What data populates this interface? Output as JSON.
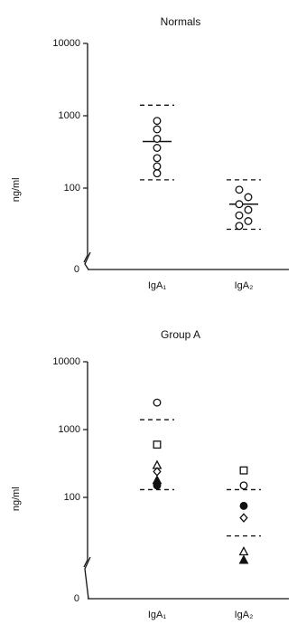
{
  "chart_data": [
    {
      "type": "dot",
      "title": "Normals",
      "y_label": "ng/ml",
      "log_scale": true,
      "categories": [
        "IgA₁",
        "IgA₂"
      ],
      "ylim": [
        10,
        10000
      ],
      "yticks": [
        10000,
        1000,
        100
      ],
      "zero_label": "0",
      "series": [
        {
          "marker": "circle",
          "filled": false,
          "color": "#111111",
          "values": [
            [
              850,
              650,
              480,
              360,
              260,
              200,
              160
            ],
            [
              95,
              75,
              60,
              50,
              42,
              35,
              30
            ]
          ]
        }
      ],
      "mean": [
        440,
        60
      ],
      "range_high": [
        1400,
        130
      ],
      "range_low": [
        130,
        27
      ]
    },
    {
      "type": "dot",
      "title": "Group A",
      "y_label": "ng/ml",
      "log_scale": true,
      "categories": [
        "IgA₁",
        "IgA₂"
      ],
      "ylim": [
        10,
        10000
      ],
      "yticks": [
        10000,
        1000,
        100
      ],
      "zero_label": "0",
      "series": [
        {
          "marker": "circle",
          "filled": false,
          "color": "#111111",
          "values": [
            [
              2500
            ],
            [
              150
            ]
          ]
        },
        {
          "marker": "square",
          "filled": false,
          "color": "#111111",
          "values": [
            [
              600
            ],
            [
              250
            ]
          ]
        },
        {
          "marker": "triangle",
          "filled": false,
          "color": "#111111",
          "values": [
            [
              300
            ],
            [
              16
            ]
          ]
        },
        {
          "marker": "diamond",
          "filled": false,
          "color": "#111111",
          "values": [
            [
              240
            ],
            [
              50
            ]
          ]
        },
        {
          "marker": "triangle",
          "filled": true,
          "color": "#111111",
          "values": [
            [
              180
            ],
            [
              12
            ]
          ]
        },
        {
          "marker": "circle",
          "filled": true,
          "color": "#111111",
          "values": [
            [
              150
            ],
            [
              75
            ]
          ]
        }
      ],
      "range_high": [
        1400,
        130
      ],
      "range_low": [
        130,
        27
      ]
    }
  ]
}
